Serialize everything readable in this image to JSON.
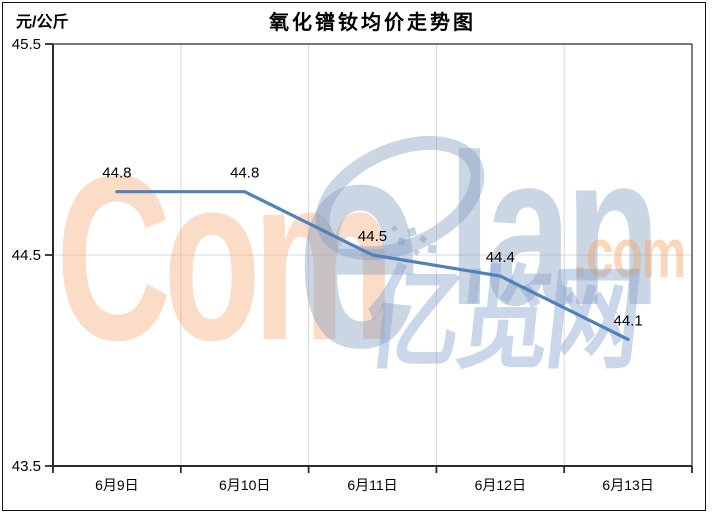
{
  "header": {
    "title": "氧化镨钕均价走势图",
    "unit_label": "元/公斤"
  },
  "chart_data": {
    "type": "line",
    "title": "氧化镨钕均价走势图",
    "ylabel": "元/公斤",
    "xlabel": "",
    "categories": [
      "6月9日",
      "6月10日",
      "6月11日",
      "6月12日",
      "6月13日"
    ],
    "series": [
      {
        "name": "氧化镨钕均价",
        "values": [
          44.8,
          44.8,
          44.5,
          44.4,
          44.1
        ]
      }
    ],
    "data_labels": [
      "44.8",
      "44.8",
      "44.5",
      "44.4",
      "44.1"
    ],
    "ylim": [
      43.5,
      45.5
    ],
    "yticks": [
      45.5,
      44.5,
      43.5
    ],
    "ytick_labels": [
      "45.5",
      "44.5",
      "43.5"
    ],
    "grid": {
      "horizontal": true,
      "vertical": true
    },
    "legend_position": "none",
    "line_color": "#4F81BD"
  },
  "watermark": {
    "part_com": "Com",
    "part_e": "e",
    "part_lan": "lan",
    "part_domain": ".com",
    "part_cn": "亿览网",
    "peach_color": "#F4A468",
    "blue_color": "#7D98BE"
  },
  "colors": {
    "line": "#4F81BD",
    "axis": "#2B2B2B",
    "gridline": "#D9D9D9",
    "label_text": "#000000",
    "background": "#FFFFFF"
  }
}
